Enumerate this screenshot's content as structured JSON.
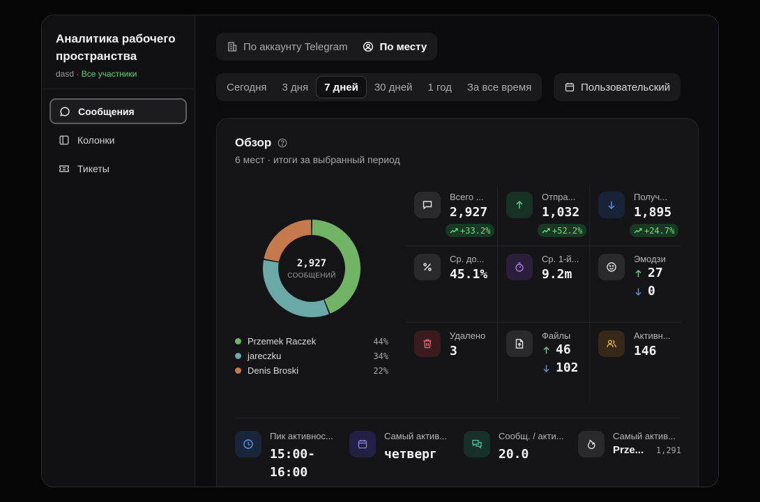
{
  "sidebar": {
    "title": "Аналитика рабочего пространства",
    "workspace": "dasd",
    "separator": "·",
    "scope": "Все участники",
    "items": [
      {
        "label": "Сообщения",
        "icon": "message-icon"
      },
      {
        "label": "Колонки",
        "icon": "columns-icon"
      },
      {
        "label": "Тикеты",
        "icon": "ticket-icon"
      }
    ]
  },
  "grouping": {
    "options": [
      {
        "label": "По аккаунту Telegram",
        "icon": "building-icon"
      },
      {
        "label": "По месту",
        "icon": "user-circle-icon"
      }
    ],
    "selected": "По месту"
  },
  "period": {
    "options": [
      "Сегодня",
      "3 дня",
      "7 дней",
      "30 дней",
      "1 год",
      "За все время"
    ],
    "selected": "7 дней",
    "custom_label": "Пользовательский"
  },
  "overview": {
    "title": "Обзор",
    "subtitle": "6 мест · итоги за выбранный период",
    "donut_total": "2,927",
    "donut_caption": "СООБЩЕНИЙ",
    "legend": [
      {
        "name": "Przemek Raczek",
        "pct": "44%",
        "color": "#72b465"
      },
      {
        "name": "jareczku",
        "pct": "34%",
        "color": "#6aa9a6"
      },
      {
        "name": "Denis Broski",
        "pct": "22%",
        "color": "#c47a4c"
      }
    ],
    "stats": [
      {
        "label": "Всего ...",
        "value": "2,927",
        "delta": "+33.2%",
        "icon": "message-icon"
      },
      {
        "label": "Отпра...",
        "value": "1,032",
        "delta": "+52.2%",
        "icon": "arrow-up-icon"
      },
      {
        "label": "Получ...",
        "value": "1,895",
        "delta": "+24.7%",
        "icon": "arrow-down-icon"
      },
      {
        "label": "Ср. до...",
        "value": "45.1%",
        "icon": "percent-icon"
      },
      {
        "label": "Ср. 1-й...",
        "value": "9.2m",
        "icon": "timer-icon"
      },
      {
        "label": "Эмодзи",
        "up": "27",
        "down": "0",
        "icon": "smile-icon"
      },
      {
        "label": "Удалено",
        "value": "3",
        "icon": "trash-icon"
      },
      {
        "label": "Файлы",
        "up": "46",
        "down": "102",
        "icon": "file-upload-icon"
      },
      {
        "label": "Активн...",
        "value": "146",
        "icon": "users-icon"
      }
    ],
    "bottom": [
      {
        "label": "Пик активнос...",
        "value_line1": "15:00-",
        "value_line2": "16:00",
        "icon": "clock-icon"
      },
      {
        "label": "Самый актив...",
        "value": "четверг",
        "icon": "calendar-icon"
      },
      {
        "label": "Сообщ. / акти...",
        "value": "20.0",
        "icon": "chat-bubbles-icon"
      },
      {
        "label": "Самый актив...",
        "value": "Prze...",
        "count": "1,291",
        "icon": "flame-icon"
      }
    ]
  },
  "colors": {
    "accent_green": "#5fd07a",
    "badge_bg": "#163a22",
    "badge_text": "#6edc89"
  }
}
